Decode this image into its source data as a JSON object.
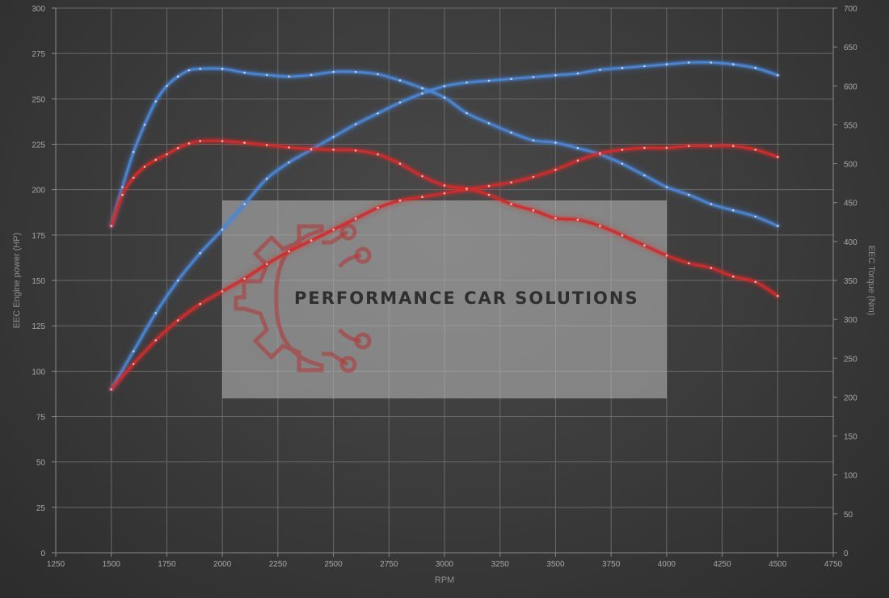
{
  "chart_data": {
    "type": "line",
    "xlabel": "RPM",
    "ylabel_left": "EEC Engine power (HP)",
    "ylabel_right": "EEC Torque (Nm)",
    "xlim": [
      1250,
      4750
    ],
    "ylim_left": [
      0,
      300
    ],
    "ylim_right": [
      0,
      700
    ],
    "x_ticks": [
      1250,
      1500,
      1750,
      2000,
      2250,
      2500,
      2750,
      3000,
      3250,
      3500,
      3750,
      4000,
      4250,
      4500,
      4750
    ],
    "y_ticks_left": [
      0,
      25,
      50,
      75,
      100,
      125,
      150,
      175,
      200,
      225,
      250,
      275,
      300
    ],
    "y_ticks_right": [
      0,
      50,
      100,
      150,
      200,
      250,
      300,
      350,
      400,
      450,
      500,
      550,
      600,
      650,
      700
    ],
    "grid": true,
    "series": [
      {
        "axis": "left",
        "color": "#4a86d8",
        "x": [
          1500,
          1600,
          1700,
          1800,
          1900,
          2000,
          2100,
          2200,
          2300,
          2400,
          2500,
          2600,
          2700,
          2800,
          2900,
          3000,
          3100,
          3200,
          3300,
          3400,
          3500,
          3600,
          3700,
          3800,
          3900,
          4000,
          4100,
          4200,
          4300,
          4400,
          4500
        ],
        "values": [
          90,
          111,
          132,
          150,
          165,
          178,
          192,
          206,
          215,
          222,
          229,
          236,
          242,
          248,
          253,
          257,
          259,
          260,
          261,
          262,
          263,
          264,
          266,
          267,
          268,
          269,
          270,
          270,
          269,
          267,
          263
        ]
      },
      {
        "axis": "right",
        "color": "#4a86d8",
        "x": [
          1500,
          1550,
          1600,
          1650,
          1700,
          1750,
          1800,
          1850,
          1900,
          2000,
          2100,
          2200,
          2300,
          2400,
          2500,
          2600,
          2700,
          2800,
          2900,
          3000,
          3100,
          3200,
          3300,
          3400,
          3500,
          3600,
          3700,
          3800,
          3900,
          4000,
          4100,
          4200,
          4300,
          4400,
          4500
        ],
        "values": [
          420,
          470,
          515,
          550,
          580,
          600,
          612,
          620,
          622,
          622,
          617,
          614,
          612,
          614,
          618,
          618,
          615,
          607,
          597,
          585,
          565,
          552,
          540,
          530,
          527,
          520,
          512,
          500,
          485,
          470,
          460,
          448,
          440,
          432,
          420
        ]
      },
      {
        "axis": "left",
        "color": "#d42a2a",
        "x": [
          1500,
          1600,
          1700,
          1800,
          1900,
          2000,
          2100,
          2200,
          2300,
          2400,
          2500,
          2600,
          2700,
          2800,
          2900,
          3000,
          3100,
          3200,
          3300,
          3400,
          3500,
          3600,
          3700,
          3800,
          3900,
          4000,
          4100,
          4200,
          4300,
          4400,
          4500
        ],
        "values": [
          90,
          104,
          117,
          128,
          137,
          144,
          151,
          159,
          166,
          172,
          178,
          184,
          190,
          194,
          196,
          198,
          200,
          202,
          204,
          207,
          211,
          216,
          220,
          222,
          223,
          223,
          224,
          224,
          224,
          222,
          218
        ]
      },
      {
        "axis": "right",
        "color": "#d42a2a",
        "x": [
          1500,
          1550,
          1600,
          1650,
          1700,
          1750,
          1800,
          1850,
          1900,
          2000,
          2100,
          2200,
          2300,
          2400,
          2500,
          2600,
          2700,
          2800,
          2900,
          3000,
          3100,
          3200,
          3300,
          3400,
          3500,
          3600,
          3700,
          3800,
          3900,
          4000,
          4100,
          4200,
          4300,
          4400,
          4500
        ],
        "values": [
          420,
          460,
          482,
          496,
          505,
          512,
          520,
          526,
          529,
          529,
          527,
          524,
          521,
          519,
          518,
          517,
          512,
          500,
          484,
          472,
          468,
          460,
          448,
          440,
          430,
          428,
          420,
          408,
          395,
          382,
          372,
          366,
          355,
          348,
          330
        ]
      }
    ]
  },
  "watermark": {
    "text": "PERFORMANCE CAR SOLUTIONS",
    "color": "#b03a3a"
  }
}
